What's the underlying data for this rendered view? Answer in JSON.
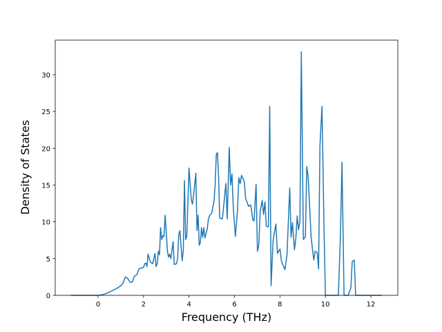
{
  "chart_data": {
    "type": "line",
    "x_label": "Frequency (THz)",
    "y_label": "Density of States",
    "x": [
      -1.2,
      0,
      0.2,
      0.4,
      0.6,
      0.8,
      1.0,
      1.1,
      1.2,
      1.3,
      1.4,
      1.5,
      1.6,
      1.7,
      1.8,
      1.9,
      2.0,
      2.05,
      2.1,
      2.15,
      2.2,
      2.3,
      2.4,
      2.5,
      2.55,
      2.6,
      2.65,
      2.7,
      2.75,
      2.8,
      2.85,
      2.9,
      2.95,
      3.0,
      3.05,
      3.1,
      3.15,
      3.2,
      3.3,
      3.35,
      3.45,
      3.5,
      3.55,
      3.6,
      3.65,
      3.7,
      3.75,
      3.8,
      3.85,
      3.9,
      4.0,
      4.1,
      4.15,
      4.2,
      4.3,
      4.35,
      4.4,
      4.45,
      4.5,
      4.55,
      4.6,
      4.65,
      4.7,
      4.8,
      4.85,
      4.9,
      5.0,
      5.1,
      5.15,
      5.2,
      5.25,
      5.3,
      5.35,
      5.47,
      5.62,
      5.68,
      5.77,
      5.83,
      5.89,
      5.95,
      6.04,
      6.13,
      6.19,
      6.25,
      6.31,
      6.43,
      6.49,
      6.62,
      6.71,
      6.74,
      6.8,
      6.86,
      6.95,
      7.01,
      7.07,
      7.13,
      7.22,
      7.28,
      7.34,
      7.4,
      7.49,
      7.55,
      7.61,
      7.7,
      7.82,
      7.89,
      8.0,
      8.07,
      8.22,
      8.31,
      8.43,
      8.49,
      8.55,
      8.64,
      8.7,
      8.76,
      8.82,
      8.88,
      8.94,
      9.03,
      9.12,
      9.18,
      9.24,
      9.3,
      9.37,
      9.43,
      9.49,
      9.55,
      9.64,
      9.7,
      9.76,
      9.85,
      9.94,
      10.0,
      10.57,
      10.66,
      10.73,
      10.82,
      11.0,
      11.12,
      11.18,
      11.27,
      11.33,
      12.48
    ],
    "series": [
      {
        "color": "#1f77b4",
        "values": [
          0,
          0,
          0.1,
          0.3,
          0.6,
          0.9,
          1.3,
          1.7,
          2.5,
          2.3,
          1.8,
          1.8,
          2.6,
          2.8,
          3.6,
          3.7,
          3.8,
          4.3,
          4.4,
          3.9,
          5.6,
          4.5,
          4.3,
          5.7,
          3.9,
          4.3,
          6.0,
          5.5,
          9.2,
          7.6,
          8.1,
          8.0,
          10.9,
          8.5,
          6.0,
          5.2,
          5.6,
          5.0,
          7.3,
          4.2,
          4.3,
          5.1,
          8.3,
          8.8,
          6.6,
          4.7,
          6.2,
          15.6,
          7.6,
          8.0,
          17.3,
          13.0,
          12.4,
          13.6,
          16.6,
          8.8,
          10.9,
          6.8,
          7.2,
          9.2,
          7.9,
          9.2,
          7.8,
          9.0,
          10.3,
          10.8,
          11.2,
          12.8,
          15.0,
          19.2,
          19.4,
          16.2,
          10.5,
          10.4,
          15.2,
          10.4,
          20.1,
          15.0,
          16.5,
          11.8,
          8.0,
          11.4,
          16.0,
          15.2,
          16.3,
          15.5,
          13.2,
          12.1,
          12.3,
          11.8,
          10.3,
          10.1,
          15.1,
          6.0,
          6.8,
          11.4,
          12.9,
          11.0,
          12.7,
          9.4,
          9.3,
          25.7,
          1.3,
          7.5,
          9.7,
          5.7,
          6.3,
          4.6,
          3.5,
          5.5,
          14.6,
          7.9,
          9.9,
          6.2,
          7.8,
          10.8,
          8.9,
          10.1,
          33.1,
          7.6,
          8.0,
          17.5,
          16.2,
          12.5,
          8.0,
          6.3,
          4.8,
          6.0,
          5.8,
          3.6,
          20.3,
          25.7,
          9.0,
          0,
          0,
          8.0,
          18.1,
          0,
          0,
          1.0,
          4.6,
          4.8,
          0,
          0
        ]
      }
    ],
    "xlim": [
      -1.885,
      13.185
    ],
    "xticks": [
      0,
      2,
      4,
      6,
      8,
      10,
      12
    ],
    "ylim": [
      0,
      34.7
    ],
    "yticks": [
      0,
      5,
      10,
      15,
      20,
      25,
      30
    ]
  }
}
